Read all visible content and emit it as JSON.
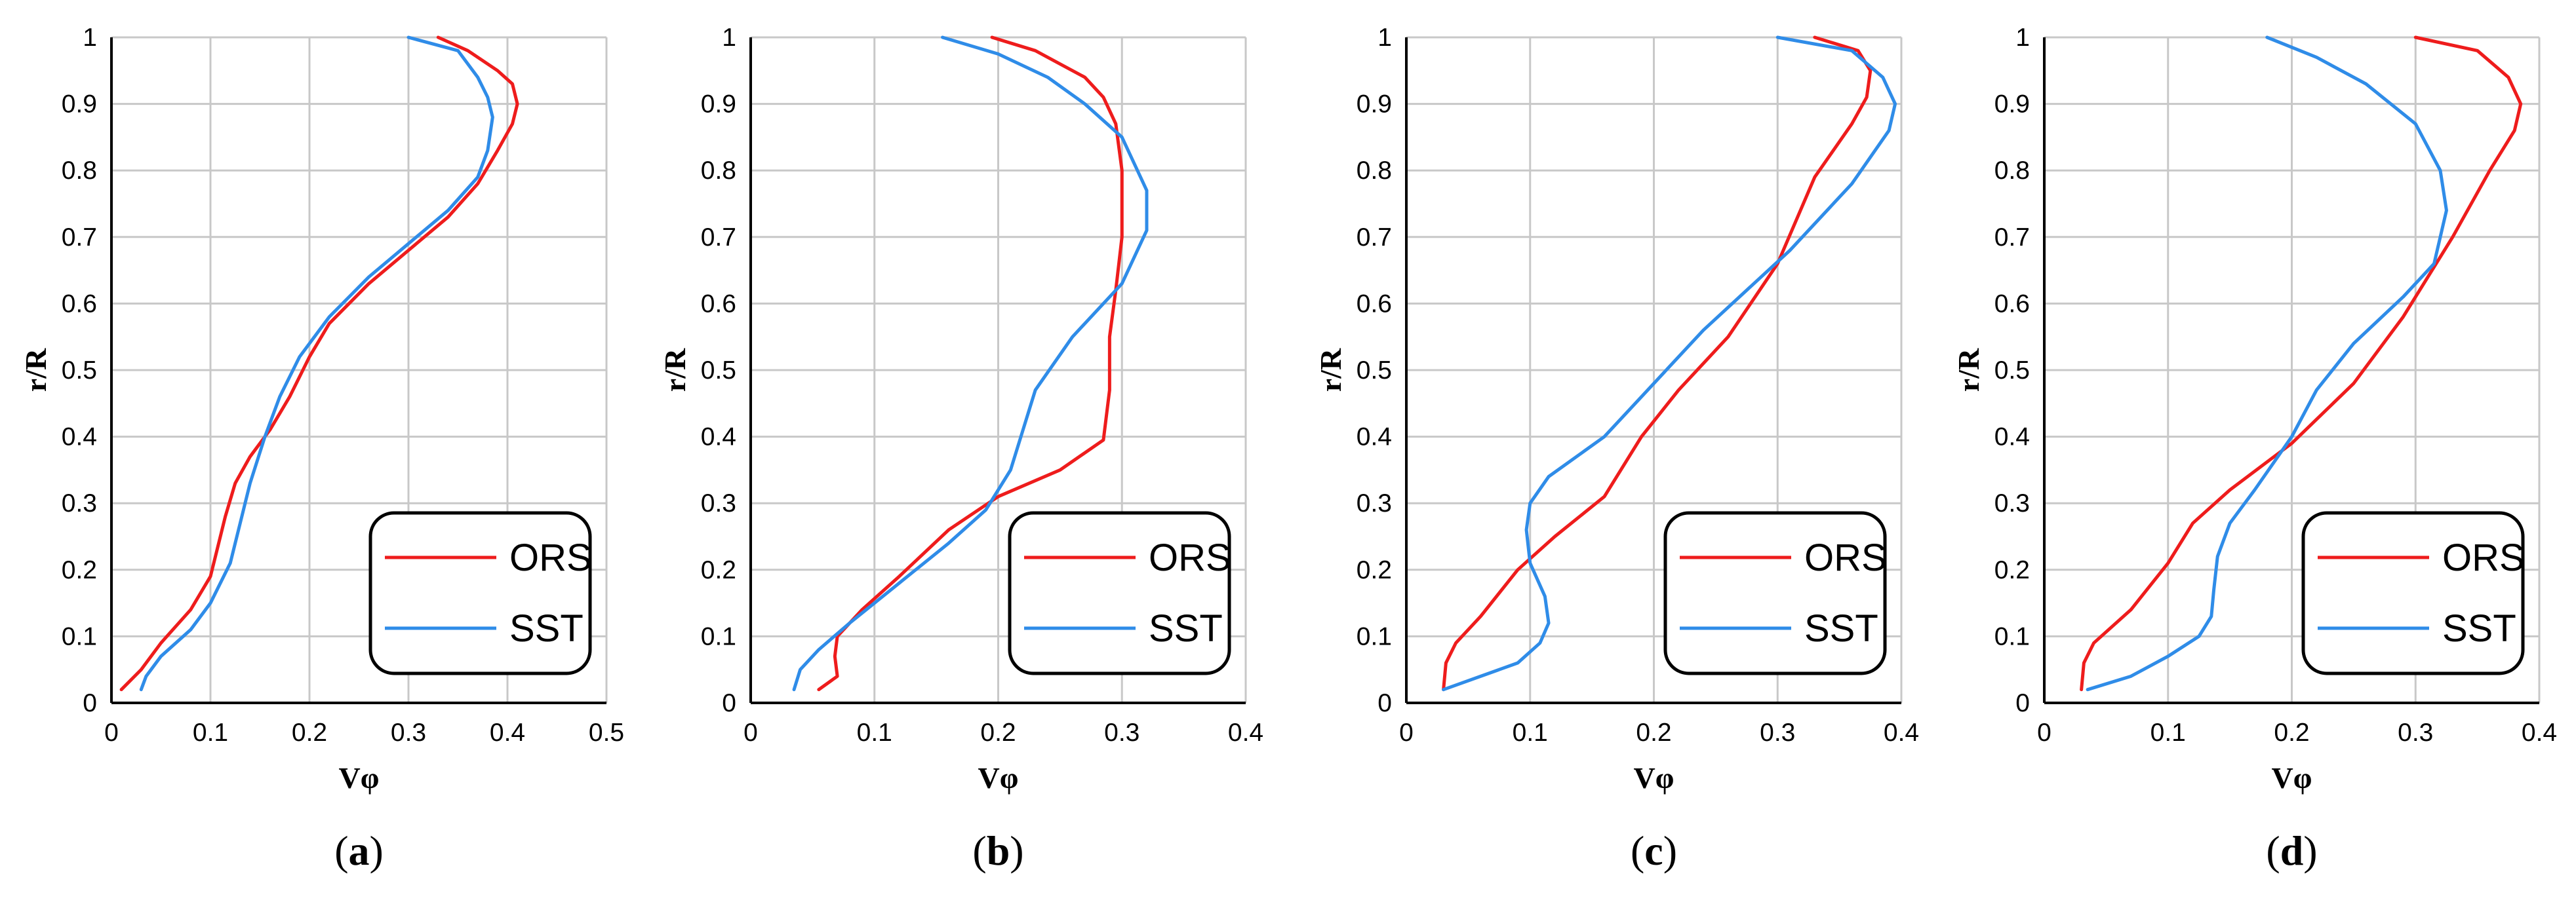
{
  "chart_data": [
    {
      "type": "line",
      "panel_label": "a",
      "xlabel": "Vφ",
      "ylabel": "r/R",
      "xlim": [
        0,
        0.5
      ],
      "ylim": [
        0,
        1
      ],
      "xticks": [
        0,
        0.1,
        0.2,
        0.3,
        0.4,
        0.5
      ],
      "yticks": [
        0,
        0.1,
        0.2,
        0.3,
        0.4,
        0.5,
        0.6,
        0.7,
        0.8,
        0.9,
        1
      ],
      "grid": true,
      "legend_position": "bottom-right",
      "series": [
        {
          "name": "ORS",
          "color": "#ee1c1c",
          "x": [
            0.01,
            0.03,
            0.05,
            0.08,
            0.1,
            0.105,
            0.115,
            0.125,
            0.14,
            0.16,
            0.18,
            0.2,
            0.22,
            0.26,
            0.3,
            0.34,
            0.37,
            0.39,
            0.405,
            0.41,
            0.405,
            0.39,
            0.36,
            0.33
          ],
          "y": [
            0.02,
            0.05,
            0.09,
            0.14,
            0.19,
            0.22,
            0.28,
            0.33,
            0.37,
            0.41,
            0.46,
            0.52,
            0.57,
            0.63,
            0.68,
            0.73,
            0.78,
            0.83,
            0.87,
            0.9,
            0.93,
            0.95,
            0.98,
            1.0
          ]
        },
        {
          "name": "SST",
          "color": "#2f8ce8",
          "x": [
            0.03,
            0.035,
            0.05,
            0.08,
            0.1,
            0.12,
            0.13,
            0.14,
            0.155,
            0.17,
            0.19,
            0.22,
            0.26,
            0.3,
            0.34,
            0.37,
            0.38,
            0.385,
            0.38,
            0.37,
            0.35,
            0.3
          ],
          "y": [
            0.02,
            0.04,
            0.07,
            0.11,
            0.15,
            0.21,
            0.27,
            0.33,
            0.4,
            0.46,
            0.52,
            0.58,
            0.64,
            0.69,
            0.74,
            0.79,
            0.83,
            0.88,
            0.91,
            0.94,
            0.98,
            1.0
          ]
        }
      ]
    },
    {
      "type": "line",
      "panel_label": "b",
      "xlabel": "Vφ",
      "ylabel": "r/R",
      "xlim": [
        0,
        0.4
      ],
      "ylim": [
        0,
        1
      ],
      "xticks": [
        0,
        0.1,
        0.2,
        0.3,
        0.4
      ],
      "yticks": [
        0,
        0.1,
        0.2,
        0.3,
        0.4,
        0.5,
        0.6,
        0.7,
        0.8,
        0.9,
        1
      ],
      "grid": true,
      "legend_position": "bottom-right",
      "series": [
        {
          "name": "ORS",
          "color": "#ee1c1c",
          "x": [
            0.055,
            0.07,
            0.068,
            0.07,
            0.09,
            0.12,
            0.16,
            0.2,
            0.25,
            0.285,
            0.29,
            0.29,
            0.295,
            0.3,
            0.3,
            0.295,
            0.285,
            0.27,
            0.25,
            0.23,
            0.195
          ],
          "y": [
            0.02,
            0.04,
            0.07,
            0.1,
            0.14,
            0.19,
            0.26,
            0.31,
            0.35,
            0.395,
            0.47,
            0.55,
            0.62,
            0.7,
            0.8,
            0.87,
            0.91,
            0.94,
            0.96,
            0.98,
            1.0
          ]
        },
        {
          "name": "SST",
          "color": "#2f8ce8",
          "x": [
            0.035,
            0.04,
            0.055,
            0.08,
            0.12,
            0.16,
            0.19,
            0.21,
            0.22,
            0.23,
            0.26,
            0.3,
            0.32,
            0.32,
            0.3,
            0.27,
            0.24,
            0.2,
            0.155
          ],
          "y": [
            0.02,
            0.05,
            0.08,
            0.12,
            0.18,
            0.24,
            0.29,
            0.35,
            0.41,
            0.47,
            0.55,
            0.63,
            0.71,
            0.77,
            0.85,
            0.9,
            0.94,
            0.975,
            1.0
          ]
        }
      ]
    },
    {
      "type": "line",
      "panel_label": "c",
      "xlabel": "Vφ",
      "ylabel": "r/R",
      "xlim": [
        0,
        0.4
      ],
      "ylim": [
        0,
        1
      ],
      "xticks": [
        0,
        0.1,
        0.2,
        0.3,
        0.4
      ],
      "yticks": [
        0,
        0.1,
        0.2,
        0.3,
        0.4,
        0.5,
        0.6,
        0.7,
        0.8,
        0.9,
        1
      ],
      "grid": true,
      "legend_position": "bottom-right",
      "series": [
        {
          "name": "ORS",
          "color": "#ee1c1c",
          "x": [
            0.03,
            0.032,
            0.04,
            0.06,
            0.09,
            0.12,
            0.16,
            0.19,
            0.22,
            0.26,
            0.3,
            0.33,
            0.36,
            0.372,
            0.375,
            0.365,
            0.33
          ],
          "y": [
            0.02,
            0.06,
            0.09,
            0.13,
            0.2,
            0.25,
            0.31,
            0.4,
            0.47,
            0.55,
            0.66,
            0.79,
            0.87,
            0.91,
            0.95,
            0.98,
            1.0
          ]
        },
        {
          "name": "SST",
          "color": "#2f8ce8",
          "x": [
            0.03,
            0.06,
            0.09,
            0.108,
            0.115,
            0.112,
            0.1,
            0.097,
            0.1,
            0.115,
            0.16,
            0.24,
            0.31,
            0.36,
            0.39,
            0.395,
            0.385,
            0.36,
            0.3
          ],
          "y": [
            0.02,
            0.04,
            0.06,
            0.09,
            0.12,
            0.16,
            0.21,
            0.26,
            0.3,
            0.34,
            0.4,
            0.56,
            0.68,
            0.78,
            0.86,
            0.9,
            0.94,
            0.98,
            1.0
          ]
        }
      ]
    },
    {
      "type": "line",
      "panel_label": "d",
      "xlabel": "Vφ",
      "ylabel": "r/R",
      "xlim": [
        0,
        0.4
      ],
      "ylim": [
        0,
        1
      ],
      "xticks": [
        0,
        0.1,
        0.2,
        0.3,
        0.4
      ],
      "yticks": [
        0,
        0.1,
        0.2,
        0.3,
        0.4,
        0.5,
        0.6,
        0.7,
        0.8,
        0.9,
        1
      ],
      "grid": true,
      "legend_position": "bottom-right",
      "series": [
        {
          "name": "ORS",
          "color": "#ee1c1c",
          "x": [
            0.03,
            0.032,
            0.04,
            0.07,
            0.1,
            0.12,
            0.15,
            0.2,
            0.25,
            0.29,
            0.33,
            0.36,
            0.38,
            0.385,
            0.375,
            0.35,
            0.3
          ],
          "y": [
            0.02,
            0.06,
            0.09,
            0.14,
            0.21,
            0.27,
            0.32,
            0.39,
            0.48,
            0.58,
            0.7,
            0.8,
            0.86,
            0.9,
            0.94,
            0.98,
            1.0
          ]
        },
        {
          "name": "SST",
          "color": "#2f8ce8",
          "x": [
            0.035,
            0.07,
            0.1,
            0.125,
            0.135,
            0.137,
            0.14,
            0.15,
            0.17,
            0.2,
            0.22,
            0.25,
            0.29,
            0.315,
            0.325,
            0.32,
            0.3,
            0.26,
            0.22,
            0.18
          ],
          "y": [
            0.02,
            0.04,
            0.07,
            0.1,
            0.13,
            0.17,
            0.22,
            0.27,
            0.32,
            0.4,
            0.47,
            0.54,
            0.61,
            0.66,
            0.74,
            0.8,
            0.87,
            0.93,
            0.97,
            1.0
          ]
        }
      ]
    }
  ]
}
